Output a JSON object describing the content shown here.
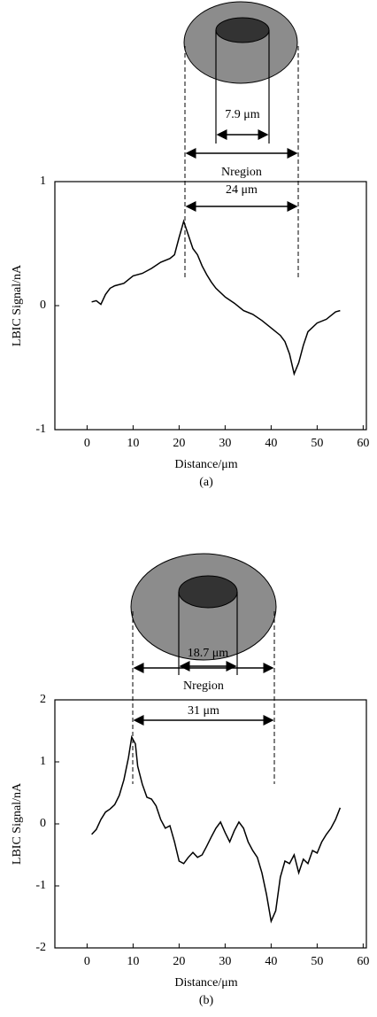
{
  "chart_data": [
    {
      "type": "line",
      "title": "(a)",
      "xlabel": "Distance/μm",
      "ylabel": "LBIC Signal/nA",
      "annotations": [
        "7.9 μm",
        "Nregion",
        "24 μm"
      ],
      "x": [
        1,
        2,
        3,
        4,
        5,
        6,
        8,
        10,
        12,
        14,
        16,
        18,
        19,
        20,
        21,
        22,
        23,
        24,
        25,
        26,
        27,
        28,
        30,
        32,
        34,
        36,
        38,
        40,
        42,
        43,
        44,
        45,
        46,
        47,
        48,
        50,
        52,
        54,
        55
      ],
      "values": [
        0.03,
        0.04,
        0.01,
        0.09,
        0.14,
        0.16,
        0.18,
        0.24,
        0.26,
        0.3,
        0.35,
        0.38,
        0.41,
        0.55,
        0.68,
        0.57,
        0.46,
        0.41,
        0.32,
        0.25,
        0.19,
        0.14,
        0.07,
        0.02,
        -0.04,
        -0.07,
        -0.12,
        -0.18,
        -0.24,
        -0.29,
        -0.39,
        -0.55,
        -0.46,
        -0.32,
        -0.21,
        -0.14,
        -0.11,
        -0.05,
        -0.04
      ],
      "color": "#000000",
      "xlim": [
        -7,
        60.7
      ],
      "xticks": [
        0,
        10,
        20,
        30,
        40,
        50,
        60
      ],
      "ylim": [
        -1,
        1
      ],
      "yticks": [
        -1,
        0,
        1
      ],
      "grid": false
    },
    {
      "type": "line",
      "title": "(b)",
      "xlabel": "Distance/μm",
      "ylabel": "LBIC Signal/nA",
      "annotations": [
        "18.7 μm",
        "Nregion",
        "31 μm"
      ],
      "x": [
        1,
        2,
        3,
        4,
        5,
        6,
        7,
        8,
        9,
        9.7,
        10.5,
        11,
        12,
        13,
        14,
        15,
        16,
        17,
        18,
        19,
        20,
        21,
        22,
        23,
        24,
        25,
        26,
        27,
        28,
        29,
        30,
        31,
        32,
        33,
        34,
        35,
        36,
        37,
        38,
        39,
        40,
        41,
        42,
        43,
        44,
        45,
        46,
        47,
        48,
        49,
        50,
        51,
        52,
        53,
        54,
        55
      ],
      "values": [
        -0.17,
        -0.09,
        0.07,
        0.19,
        0.24,
        0.31,
        0.46,
        0.71,
        1.07,
        1.4,
        1.29,
        0.93,
        0.64,
        0.43,
        0.4,
        0.29,
        0.07,
        -0.07,
        -0.03,
        -0.29,
        -0.6,
        -0.64,
        -0.54,
        -0.46,
        -0.54,
        -0.5,
        -0.36,
        -0.21,
        -0.07,
        0.03,
        -0.14,
        -0.29,
        -0.11,
        0.03,
        -0.07,
        -0.29,
        -0.43,
        -0.54,
        -0.79,
        -1.14,
        -1.57,
        -1.4,
        -0.86,
        -0.6,
        -0.64,
        -0.5,
        -0.79,
        -0.57,
        -0.64,
        -0.43,
        -0.47,
        -0.29,
        -0.17,
        -0.07,
        0.07,
        0.26
      ],
      "color": "#000000",
      "xlim": [
        -7,
        60.7
      ],
      "xticks": [
        0,
        10,
        20,
        30,
        40,
        50,
        60
      ],
      "ylim": [
        -2,
        2
      ],
      "yticks": [
        -2,
        -1,
        0,
        1,
        2
      ],
      "grid": false
    }
  ]
}
